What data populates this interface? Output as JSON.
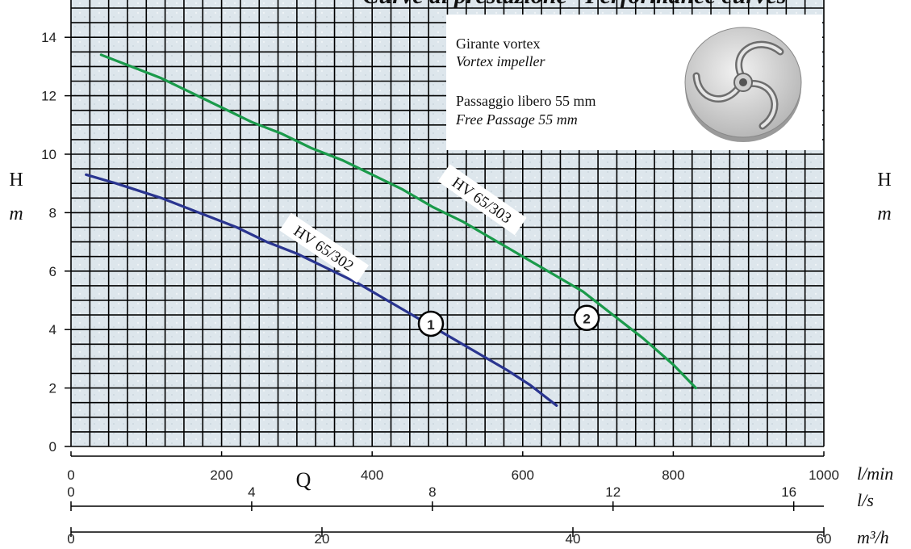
{
  "title_fragment": "Curve di prestazione · Performance curves",
  "info_box": {
    "impeller_it": "Girante vortex",
    "impeller_en": "Vortex impeller",
    "passage_it": "Passaggio libero 55 mm",
    "passage_en": "Free Passage 55 mm"
  },
  "colors": {
    "curve_1": "#2a3590",
    "curve_2": "#1a9a4a",
    "grid": "#000000",
    "plot_bg": "#dde6ec"
  },
  "chart_data": {
    "type": "line",
    "xlabel": "Q",
    "ylabel": "H",
    "ylabel_unit": "m",
    "xlim": [
      0,
      1000
    ],
    "ylim": [
      0,
      15
    ],
    "grid": true,
    "y_ticks": [
      "0",
      "2",
      "4",
      "6",
      "8",
      "10",
      "12",
      "14"
    ],
    "x_axes": [
      {
        "unit": "l/min",
        "ticks": [
          {
            "label": "0",
            "value": 0
          },
          {
            "label": "200",
            "value": 200
          },
          {
            "label": "400",
            "value": 400
          },
          {
            "label": "600",
            "value": 600
          },
          {
            "label": "800",
            "value": 800
          },
          {
            "label": "1000",
            "value": 1000
          }
        ]
      },
      {
        "unit": "l/s",
        "ticks": [
          {
            "label": "0",
            "value": 0
          },
          {
            "label": "4",
            "value": 4
          },
          {
            "label": "8",
            "value": 8
          },
          {
            "label": "12",
            "value": 12
          },
          {
            "label": "16",
            "value": 16
          }
        ]
      },
      {
        "unit": "m³/h",
        "ticks": [
          {
            "label": "0",
            "value": 0
          },
          {
            "label": "20",
            "value": 20
          },
          {
            "label": "40",
            "value": 40
          },
          {
            "label": "60",
            "value": 60
          }
        ]
      }
    ],
    "series": [
      {
        "name": "HV 65/302",
        "marker": "1",
        "x": [
          20,
          60,
          120,
          180,
          220,
          260,
          300,
          340,
          380,
          420,
          460,
          500,
          540,
          580,
          610,
          645
        ],
        "y": [
          9.3,
          9.0,
          8.5,
          7.9,
          7.5,
          7.0,
          6.6,
          6.1,
          5.6,
          5.0,
          4.4,
          3.8,
          3.2,
          2.6,
          2.1,
          1.4
        ]
      },
      {
        "name": "HV 65/303",
        "marker": "2",
        "x": [
          40,
          80,
          120,
          160,
          200,
          240,
          280,
          320,
          360,
          400,
          440,
          480,
          520,
          560,
          600,
          640,
          680,
          720,
          760,
          800,
          830
        ],
        "y": [
          13.4,
          13.0,
          12.6,
          12.1,
          11.6,
          11.1,
          10.7,
          10.2,
          9.8,
          9.3,
          8.8,
          8.2,
          7.7,
          7.1,
          6.5,
          5.9,
          5.3,
          4.5,
          3.7,
          2.8,
          2.0
        ]
      }
    ]
  }
}
